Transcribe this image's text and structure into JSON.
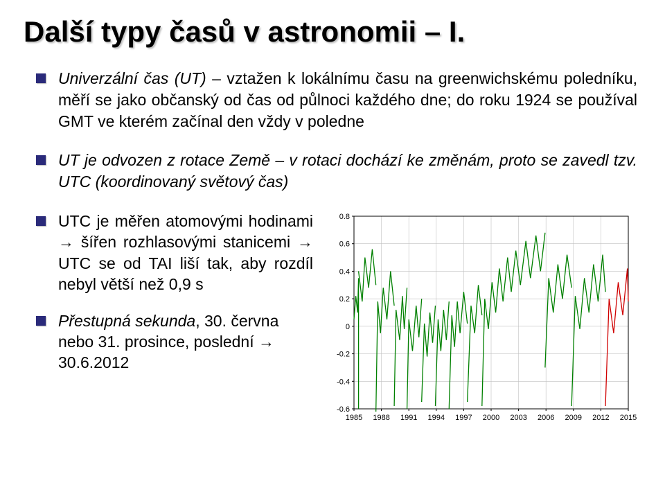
{
  "title": "Další typy časů v astronomii – I.",
  "bullet1_prefix": "Univerzální čas (UT)",
  "bullet1_rest": " – vztažen k lokálnímu času na greenwichskému poledníku, měří se jako občanský od čas od půlnoci každého dne; do roku 1924 se používal GMT ve kterém začínal den vždy v poledne",
  "bullet2_prefix": "UT je odvozen z rotace Země – v rotaci dochází ke změnám, proto se zavedl tzv. ",
  "bullet2_italic": "UTC (koordinovaný světový čas)",
  "bullet3": "UTC je měřen atomovými hodinami → šířen rozhlasovými stanicemi → UTC se od TAI liší tak, aby rozdíl nebyl větší než 0,9 s",
  "bullet4_prefix": "Přestupná sekunda",
  "bullet4_rest": ", 30. června nebo 31. prosince, poslední → 30.6.2012",
  "chart": {
    "type": "line",
    "background_color": "#ffffff",
    "line_color": "#008000",
    "line_last_color": "#d00000",
    "grid_color": "#c0c0c0",
    "axis_color": "#000000",
    "tick_fontsize": 11,
    "line_width": 1.3,
    "ylim": [
      -0.6,
      0.8
    ],
    "yticks": [
      -0.6,
      -0.4,
      -0.2,
      0,
      0.2,
      0.4,
      0.6,
      0.8
    ],
    "xlim": [
      1985,
      2015
    ],
    "xticks": [
      1985,
      1988,
      1991,
      1994,
      1997,
      2000,
      2003,
      2006,
      2009,
      2012,
      2015
    ],
    "segments": [
      {
        "points": [
          [
            1985.0,
            0.05
          ],
          [
            1985.2,
            0.22
          ],
          [
            1985.4,
            0.1
          ],
          [
            1985.5,
            0.35
          ],
          [
            1985.5,
            -0.6
          ]
        ]
      },
      {
        "points": [
          [
            1985.5,
            0.4
          ],
          [
            1985.9,
            0.18
          ],
          [
            1986.2,
            0.5
          ],
          [
            1986.6,
            0.28
          ],
          [
            1987.0,
            0.56
          ],
          [
            1987.4,
            0.3
          ]
        ]
      },
      {
        "points": [
          [
            1987.4,
            -0.62
          ],
          [
            1987.6,
            0.18
          ],
          [
            1987.9,
            -0.05
          ],
          [
            1988.2,
            0.28
          ],
          [
            1988.6,
            0.05
          ],
          [
            1989.0,
            0.4
          ],
          [
            1989.4,
            0.15
          ]
        ]
      },
      {
        "points": [
          [
            1989.4,
            -0.58
          ],
          [
            1989.6,
            0.12
          ],
          [
            1990.0,
            -0.1
          ],
          [
            1990.3,
            0.22
          ],
          [
            1990.5,
            -0.02
          ],
          [
            1990.8,
            0.28
          ]
        ]
      },
      {
        "points": [
          [
            1990.8,
            -0.6
          ],
          [
            1991.0,
            0.05
          ],
          [
            1991.4,
            -0.18
          ],
          [
            1991.8,
            0.15
          ],
          [
            1992.1,
            -0.08
          ],
          [
            1992.4,
            0.2
          ]
        ]
      },
      {
        "points": [
          [
            1992.4,
            -0.55
          ],
          [
            1992.7,
            0.02
          ],
          [
            1993.0,
            -0.22
          ],
          [
            1993.3,
            0.1
          ],
          [
            1993.6,
            -0.12
          ],
          [
            1993.9,
            0.15
          ]
        ]
      },
      {
        "points": [
          [
            1993.9,
            -0.58
          ],
          [
            1994.2,
            0.05
          ],
          [
            1994.5,
            -0.18
          ],
          [
            1994.8,
            0.12
          ],
          [
            1995.1,
            -0.1
          ],
          [
            1995.4,
            0.18
          ]
        ]
      },
      {
        "points": [
          [
            1995.4,
            -0.6
          ],
          [
            1995.7,
            0.08
          ],
          [
            1996.0,
            -0.15
          ],
          [
            1996.3,
            0.18
          ],
          [
            1996.6,
            -0.05
          ],
          [
            1997.0,
            0.25
          ],
          [
            1997.4,
            0.02
          ]
        ]
      },
      {
        "points": [
          [
            1997.4,
            -0.55
          ],
          [
            1997.8,
            0.15
          ],
          [
            1998.2,
            -0.05
          ],
          [
            1998.6,
            0.3
          ],
          [
            1999.0,
            0.08
          ]
        ]
      },
      {
        "points": [
          [
            1999.0,
            -0.58
          ],
          [
            1999.3,
            0.2
          ],
          [
            1999.7,
            -0.02
          ],
          [
            2000.1,
            0.32
          ],
          [
            2000.5,
            0.1
          ],
          [
            2000.9,
            0.42
          ],
          [
            2001.3,
            0.18
          ],
          [
            2001.8,
            0.5
          ],
          [
            2002.2,
            0.25
          ],
          [
            2002.7,
            0.55
          ],
          [
            2003.2,
            0.3
          ],
          [
            2003.8,
            0.62
          ],
          [
            2004.3,
            0.35
          ],
          [
            2004.9,
            0.66
          ],
          [
            2005.4,
            0.4
          ],
          [
            2005.9,
            0.68
          ]
        ]
      },
      {
        "points": [
          [
            2005.9,
            -0.3
          ],
          [
            2006.3,
            0.35
          ],
          [
            2006.8,
            0.1
          ],
          [
            2007.3,
            0.45
          ],
          [
            2007.8,
            0.2
          ],
          [
            2008.3,
            0.52
          ],
          [
            2008.8,
            0.28
          ]
        ]
      },
      {
        "points": [
          [
            2008.8,
            -0.58
          ],
          [
            2009.2,
            0.22
          ],
          [
            2009.7,
            -0.02
          ],
          [
            2010.2,
            0.35
          ],
          [
            2010.7,
            0.1
          ],
          [
            2011.2,
            0.45
          ],
          [
            2011.7,
            0.18
          ],
          [
            2012.2,
            0.52
          ],
          [
            2012.5,
            0.25
          ]
        ]
      },
      {
        "points": [
          [
            2012.5,
            -0.58
          ],
          [
            2012.9,
            0.2
          ],
          [
            2013.4,
            -0.05
          ],
          [
            2013.9,
            0.32
          ],
          [
            2014.4,
            0.08
          ],
          [
            2014.9,
            0.42
          ],
          [
            2015.0,
            0.18
          ]
        ],
        "last": true
      }
    ]
  }
}
